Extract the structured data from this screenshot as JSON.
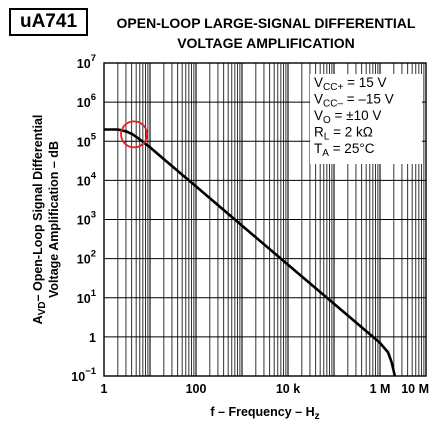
{
  "badge": "uA741",
  "title": {
    "line1": "OPEN-LOOP LARGE-SIGNAL DIFFERENTIAL",
    "line2": "VOLTAGE AMPLIFICATION"
  },
  "conditions": [
    {
      "main": "V",
      "sub": "CC+",
      "rest": " = 15 V"
    },
    {
      "main": "V",
      "sub": "CC–",
      "rest": " = –15 V"
    },
    {
      "main": "V",
      "sub": "O",
      "rest": " = ±10 V"
    },
    {
      "main": "R",
      "sub": "L",
      "rest": " = 2 kΩ"
    },
    {
      "main": "T",
      "sub": "A",
      "rest": " = 25°C"
    }
  ],
  "chart_data": {
    "type": "line",
    "x_scale": "log",
    "y_scale": "log",
    "xlim": [
      1,
      10000000
    ],
    "ylim": [
      0.1,
      10000000
    ],
    "xlabel": {
      "text": "f – Frequency – H",
      "sub": "z"
    },
    "ylabel": {
      "line1": "Open-Loop Signal Differential",
      "line2": {
        "pre": "A",
        "sub": "VD",
        "post": "– Open-Loop Signal Differential"
      },
      "line1_only": "Voltage Amplification – dB"
    },
    "x_ticks": [
      {
        "value": 1,
        "label": "1"
      },
      {
        "value": 100,
        "label": "100"
      },
      {
        "value": 10000,
        "label": "10 k"
      },
      {
        "value": 1000000,
        "label": "1 M"
      },
      {
        "value": 10000000,
        "label": "10 M"
      }
    ],
    "y_ticks": [
      {
        "value": 0.1,
        "base": "10",
        "exp": "−1"
      },
      {
        "value": 1,
        "base": "1",
        "exp": ""
      },
      {
        "value": 10,
        "base": "10",
        "exp": "1"
      },
      {
        "value": 100,
        "base": "10",
        "exp": "2"
      },
      {
        "value": 1000,
        "base": "10",
        "exp": "3"
      },
      {
        "value": 10000,
        "base": "10",
        "exp": "4"
      },
      {
        "value": 100000,
        "base": "10",
        "exp": "5"
      },
      {
        "value": 1000000,
        "base": "10",
        "exp": "6"
      },
      {
        "value": 10000000,
        "base": "10",
        "exp": "7"
      }
    ],
    "series": [
      {
        "x": [
          1,
          2,
          3,
          4,
          5,
          7,
          10,
          20,
          50,
          100,
          1000,
          10000,
          100000,
          1000000,
          1500000,
          1800000,
          2000000,
          2100000
        ],
        "y": [
          200000,
          200000,
          180000,
          155000,
          130000,
          97000,
          70000,
          35000,
          14000,
          7000,
          700,
          70,
          7,
          0.7,
          0.4,
          0.22,
          0.13,
          0.1
        ],
        "color": "#000000"
      }
    ],
    "annotation": {
      "type": "circle",
      "x": 4.5,
      "y": 150000,
      "color": "#e31e24"
    },
    "grid": true
  }
}
